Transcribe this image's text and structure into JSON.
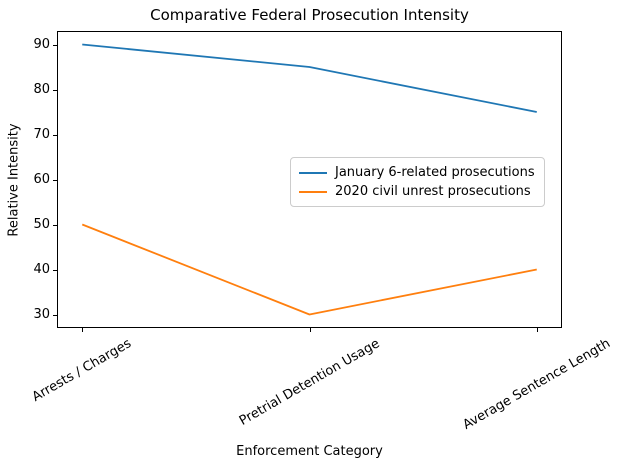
{
  "chart_data": {
    "type": "line",
    "title": "Comparative Federal Prosecution Intensity",
    "xlabel": "Enforcement Category",
    "ylabel": "Relative Intensity",
    "categories": [
      "Arrests / Charges",
      "Pretrial Detention Usage",
      "Average Sentence Length"
    ],
    "series": [
      {
        "name": "January 6-related prosecutions",
        "color": "#1f77b4",
        "values": [
          90,
          85,
          75
        ]
      },
      {
        "name": "2020 civil unrest prosecutions",
        "color": "#ff7f0e",
        "values": [
          50,
          30,
          40
        ]
      }
    ],
    "yticks": [
      30,
      40,
      50,
      60,
      70,
      80,
      90
    ],
    "ylim": [
      27,
      93
    ],
    "grid": false,
    "legend_position": "center right inside plot",
    "xtick_rotation_deg": 30
  }
}
